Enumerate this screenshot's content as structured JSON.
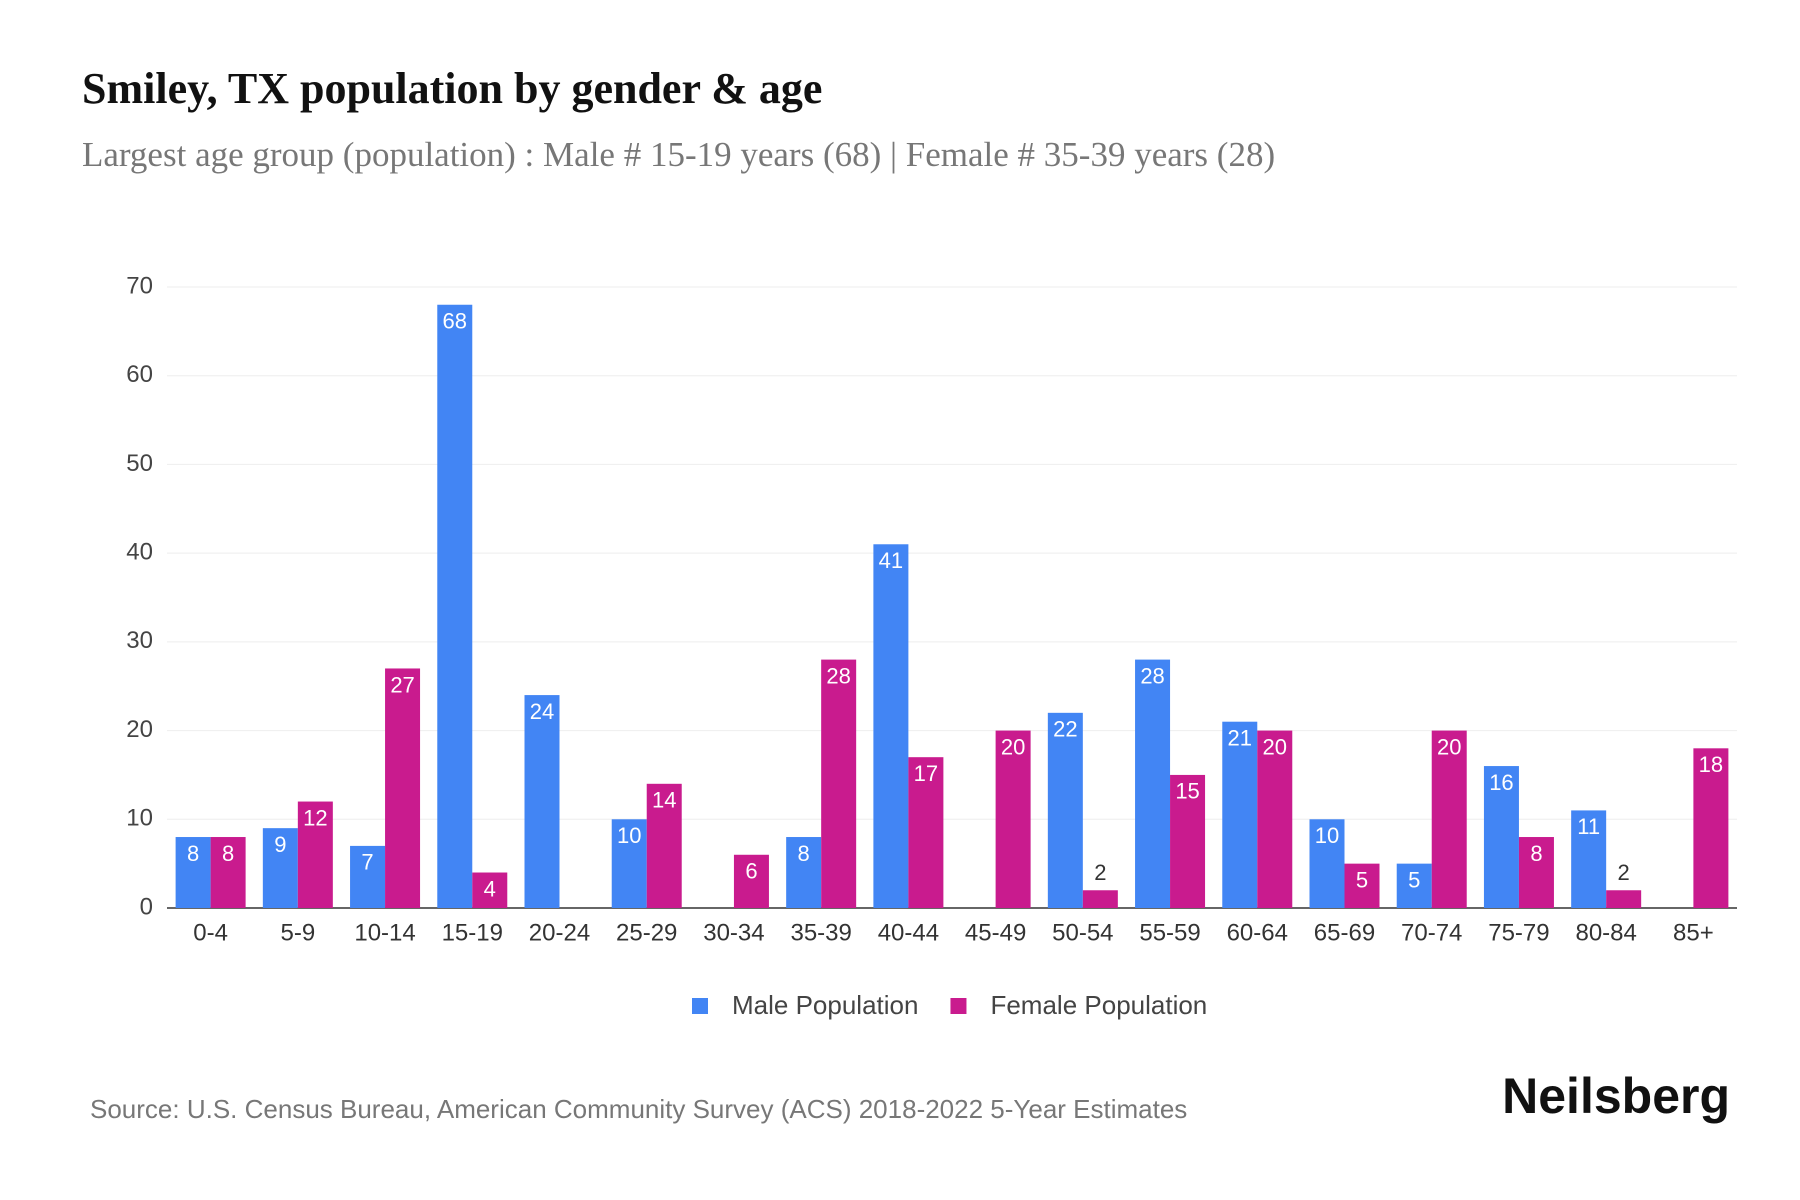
{
  "chart_data": {
    "type": "bar",
    "title": "Smiley, TX population by gender & age",
    "subtitle": "Largest age group (population) : Male # 15-19 years (68) | Female # 35-39 years (28)",
    "categories": [
      "0-4",
      "5-9",
      "10-14",
      "15-19",
      "20-24",
      "25-29",
      "30-34",
      "35-39",
      "40-44",
      "45-49",
      "50-54",
      "55-59",
      "60-64",
      "65-69",
      "70-74",
      "75-79",
      "80-84",
      "85+"
    ],
    "series": [
      {
        "name": "Male Population",
        "color": "#4285f4",
        "values": [
          8,
          9,
          7,
          68,
          24,
          10,
          null,
          8,
          41,
          null,
          22,
          28,
          21,
          10,
          5,
          16,
          11,
          null
        ]
      },
      {
        "name": "Female Population",
        "color": "#c91b8e",
        "values": [
          8,
          12,
          27,
          4,
          null,
          14,
          6,
          28,
          17,
          20,
          2,
          15,
          20,
          5,
          20,
          8,
          2,
          18
        ]
      }
    ],
    "ylim": [
      0,
      70
    ],
    "yticks": [
      0,
      10,
      20,
      30,
      40,
      50,
      60,
      70
    ],
    "grid": true,
    "legend": "bottom",
    "source": "Source: U.S. Census Bureau, American Community Survey (ACS) 2018-2022 5-Year Estimates",
    "brand": "Neilsberg"
  }
}
